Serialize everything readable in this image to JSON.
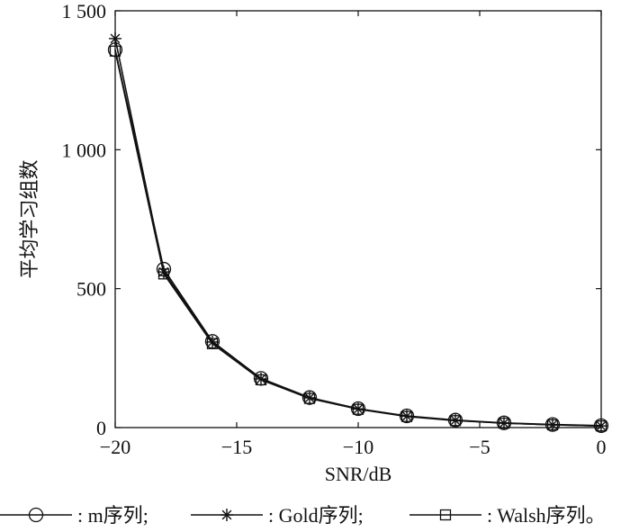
{
  "chart_data": {
    "type": "line",
    "xlabel": "SNR/dB",
    "ylabel": "平均学习组数",
    "xlim": [
      -20,
      0
    ],
    "ylim": [
      0,
      1500
    ],
    "xticks": [
      -20,
      -15,
      -10,
      -5,
      0
    ],
    "xtick_labels": [
      "−20",
      "−15",
      "−10",
      "−5",
      "0"
    ],
    "yticks": [
      0,
      500,
      1000,
      1500
    ],
    "ytick_labels": [
      "0",
      "500",
      "1 000",
      "1 500"
    ],
    "grid": false,
    "legend_position": "bottom",
    "x": [
      -20,
      -18,
      -16,
      -14,
      -12,
      -10,
      -8,
      -6,
      -4,
      -2,
      0
    ],
    "series": [
      {
        "name": "m序列",
        "legend_label": ": m序列;",
        "marker": "circle",
        "color": "#111111",
        "values": [
          1360,
          570,
          310,
          177,
          108,
          68,
          42,
          27,
          17,
          11,
          7
        ]
      },
      {
        "name": "Gold序列",
        "legend_label": ": Gold序列;",
        "marker": "asterisk",
        "color": "#111111",
        "values": [
          1400,
          560,
          308,
          175,
          107,
          67,
          41,
          26,
          16,
          10,
          6
        ]
      },
      {
        "name": "Walsh序列",
        "legend_label": ": Walsh序列。",
        "marker": "square",
        "color": "#111111",
        "values": [
          1355,
          553,
          302,
          172,
          105,
          66,
          40,
          25,
          16,
          10,
          6
        ]
      }
    ]
  }
}
